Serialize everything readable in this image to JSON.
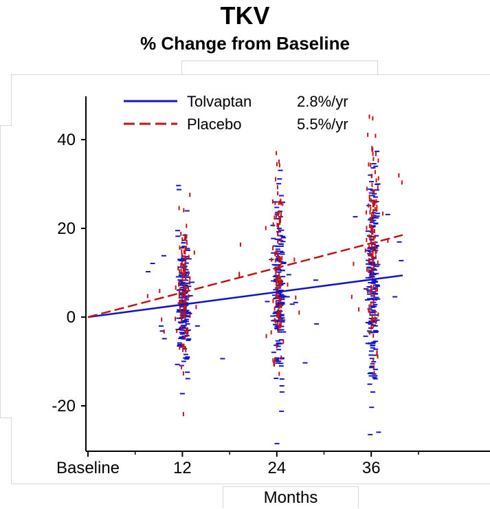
{
  "chart_data": {
    "type": "scatter",
    "title": "TKV",
    "subtitle": "% Change from Baseline",
    "xlabel": "Months",
    "ylabel": "",
    "x_ticks": [
      {
        "value": 0,
        "label": "Baseline"
      },
      {
        "value": 12,
        "label": "12"
      },
      {
        "value": 24,
        "label": "24"
      },
      {
        "value": 36,
        "label": "36"
      }
    ],
    "y_ticks": [
      {
        "value": -20,
        "label": "-20"
      },
      {
        "value": 0,
        "label": "0"
      },
      {
        "value": 20,
        "label": "20"
      },
      {
        "value": 40,
        "label": "40"
      }
    ],
    "xlim": [
      0,
      40
    ],
    "ylim": [
      -30,
      50
    ],
    "grid": false,
    "legend_position": "top-left",
    "series": [
      {
        "name": "Tolvaptan",
        "rate_label": "2.8%/yr",
        "color": "#1414c8",
        "line_style": "solid",
        "trend": [
          [
            0,
            0
          ],
          [
            40,
            9.4
          ]
        ],
        "point_clusters": [
          {
            "month": 12,
            "mean": 3.0,
            "sd": 7.0,
            "n": 190
          },
          {
            "month": 24,
            "mean": 6.0,
            "sd": 9.0,
            "n": 190
          },
          {
            "month": 36,
            "mean": 9.0,
            "sd": 12.0,
            "n": 200
          }
        ]
      },
      {
        "name": "Placebo",
        "rate_label": "5.5%/yr",
        "color": "#c01414",
        "line_style": "dashed",
        "trend": [
          [
            0,
            0
          ],
          [
            40,
            18.5
          ]
        ],
        "point_clusters": [
          {
            "month": 12,
            "mean": 5.5,
            "sd": 7.5,
            "n": 110
          },
          {
            "month": 24,
            "mean": 11.0,
            "sd": 10.0,
            "n": 120
          },
          {
            "month": 36,
            "mean": 16.5,
            "sd": 13.0,
            "n": 130
          }
        ]
      }
    ]
  }
}
